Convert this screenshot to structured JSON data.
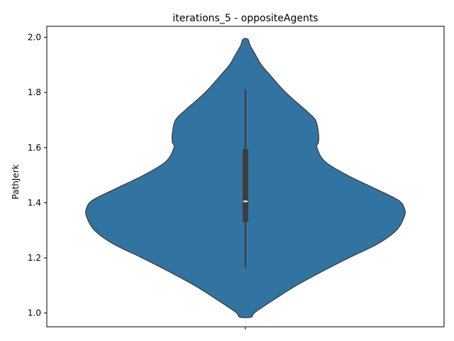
{
  "chart_data": {
    "type": "violin",
    "title": "iterations_5 - oppositeAgents",
    "xlabel": "",
    "ylabel": "PathJerk",
    "ylim": [
      0.95,
      2.04
    ],
    "yticks": [
      "1.0",
      "1.2",
      "1.4",
      "1.6",
      "1.8",
      "2.0"
    ],
    "ytick_values": [
      1.0,
      1.2,
      1.4,
      1.6,
      1.8,
      2.0
    ],
    "grid": false,
    "violin_color": "#3274a1",
    "edge_color": "#3d3d3d",
    "box_color": "#3d3d3d",
    "median_color": "#ffffff",
    "density": {
      "y": [
        0.985,
        1.0,
        1.03,
        1.06,
        1.1,
        1.15,
        1.2,
        1.25,
        1.3,
        1.35,
        1.38,
        1.41,
        1.45,
        1.5,
        1.55,
        1.6,
        1.62,
        1.65,
        1.7,
        1.74,
        1.78,
        1.82,
        1.86,
        1.9,
        1.94,
        1.97,
        1.993
      ],
      "half_width": [
        0.035,
        0.055,
        0.13,
        0.21,
        0.32,
        0.48,
        0.65,
        0.83,
        0.95,
        1.0,
        1.0,
        0.96,
        0.82,
        0.64,
        0.5,
        0.45,
        0.46,
        0.46,
        0.44,
        0.37,
        0.29,
        0.22,
        0.16,
        0.1,
        0.06,
        0.03,
        0.015
      ]
    },
    "box": {
      "whisker_low": 1.165,
      "q1": 1.33,
      "median": 1.405,
      "q3": 1.595,
      "whisker_high": 1.81
    }
  }
}
